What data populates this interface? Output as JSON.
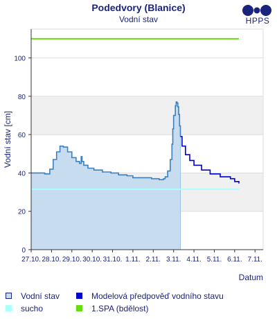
{
  "header": {
    "title": "Podedvory (Blanice)",
    "subtitle": "Vodní stav",
    "logo_text": "HPPS"
  },
  "colors": {
    "observed_line": "#3a80c0",
    "observed_fill": "#c8dcf0",
    "forecast_line": "#0000cc",
    "drought_line": "#aaffff",
    "spa_line": "#66dd11",
    "band": "#f0f0f0",
    "text": "#1a237e"
  },
  "chart_data": {
    "type": "line",
    "title": "",
    "ylabel": "Vodní stav [cm]",
    "xlabel": "Datum",
    "ylim": [
      0,
      115
    ],
    "yticks": [
      0,
      20,
      40,
      60,
      80,
      100
    ],
    "xlim_days": [
      0,
      11.4
    ],
    "x_tick_labels": [
      "27.10.",
      "28.10.",
      "29.10.",
      "30.10.",
      "31.10.",
      "1.11.",
      "2.11.",
      "3.11.",
      "4.11.",
      "5.11.",
      "6.11.",
      "7.11."
    ],
    "bands": [
      [
        20,
        40
      ],
      [
        60,
        80
      ]
    ],
    "grid": true,
    "series": [
      {
        "name": "Vodní stav",
        "kind": "observed",
        "points": [
          [
            "27.10. 00:00",
            40
          ],
          [
            "27.10. 12:00",
            40
          ],
          [
            "27.10. 16:00",
            39.5
          ],
          [
            "27.10. 22:00",
            42
          ],
          [
            "28.10. 02:00",
            47
          ],
          [
            "28.10. 06:00",
            51
          ],
          [
            "28.10. 10:00",
            54
          ],
          [
            "28.10. 14:00",
            53.5
          ],
          [
            "28.10. 19:00",
            51
          ],
          [
            "28.10. 24:00",
            48
          ],
          [
            "29.10. 05:00",
            46
          ],
          [
            "29.10. 09:00",
            45
          ],
          [
            "29.10. 11:00",
            48.5
          ],
          [
            "29.10. 12:00",
            46
          ],
          [
            "29.10. 14:00",
            44
          ],
          [
            "29.10. 19:00",
            42.5
          ],
          [
            "30.10. 02:00",
            41.5
          ],
          [
            "30.10. 12:00",
            40.5
          ],
          [
            "30.10. 22:00",
            40
          ],
          [
            "31.10. 07:00",
            39
          ],
          [
            "31.10. 17:00",
            38.5
          ],
          [
            "1.11. 00:00",
            37.5
          ],
          [
            "1.11. 12:00",
            37.5
          ],
          [
            "1.11. 22:00",
            37
          ],
          [
            "2.11. 07:00",
            36.5
          ],
          [
            "2.11. 12:00",
            37
          ],
          [
            "2.11. 14:00",
            38
          ],
          [
            "2.11. 17:00",
            41
          ],
          [
            "2.11. 20:00",
            47
          ],
          [
            "2.11. 22:00",
            55
          ],
          [
            "2.11. 23:00",
            63
          ],
          [
            "3.11. 00:00",
            70
          ],
          [
            "3.11. 02:00",
            75
          ],
          [
            "3.11. 03:00",
            77
          ],
          [
            "3.11. 04:00",
            76.5
          ],
          [
            "3.11. 05:00",
            74.5
          ],
          [
            "3.11. 06:00",
            70.5
          ],
          [
            "3.11. 07:00",
            64.5
          ],
          [
            "3.11. 08:00",
            59
          ]
        ]
      },
      {
        "name": "Modelová předpověď vodního stavu",
        "kind": "forecast",
        "points": [
          [
            "3.11. 08:00",
            59
          ],
          [
            "3.11. 10:00",
            54
          ],
          [
            "3.11. 14:00",
            49.5
          ],
          [
            "3.11. 19:00",
            46.5
          ],
          [
            "4.11. 00:00",
            44
          ],
          [
            "4.11. 09:00",
            41.5
          ],
          [
            "4.11. 19:00",
            39.5
          ],
          [
            "5.11. 07:00",
            38
          ],
          [
            "5.11. 19:00",
            37
          ],
          [
            "6.11. 00:00",
            35.5
          ],
          [
            "6.11. 05:00",
            34.5
          ]
        ]
      },
      {
        "name": "sucho",
        "kind": "threshold",
        "value": 31.5,
        "from": "27.10. 00:00",
        "to": "6.11. 05:00"
      },
      {
        "name": "1.SPA (bdělost)",
        "kind": "threshold",
        "value": 110,
        "from": "27.10. 00:00",
        "to": "6.11. 05:00"
      }
    ]
  },
  "legend": {
    "observed": "Vodní stav",
    "forecast": "Modelová předpověď vodního stavu",
    "drought": "sucho",
    "spa1": "1.SPA (bdělost)"
  }
}
